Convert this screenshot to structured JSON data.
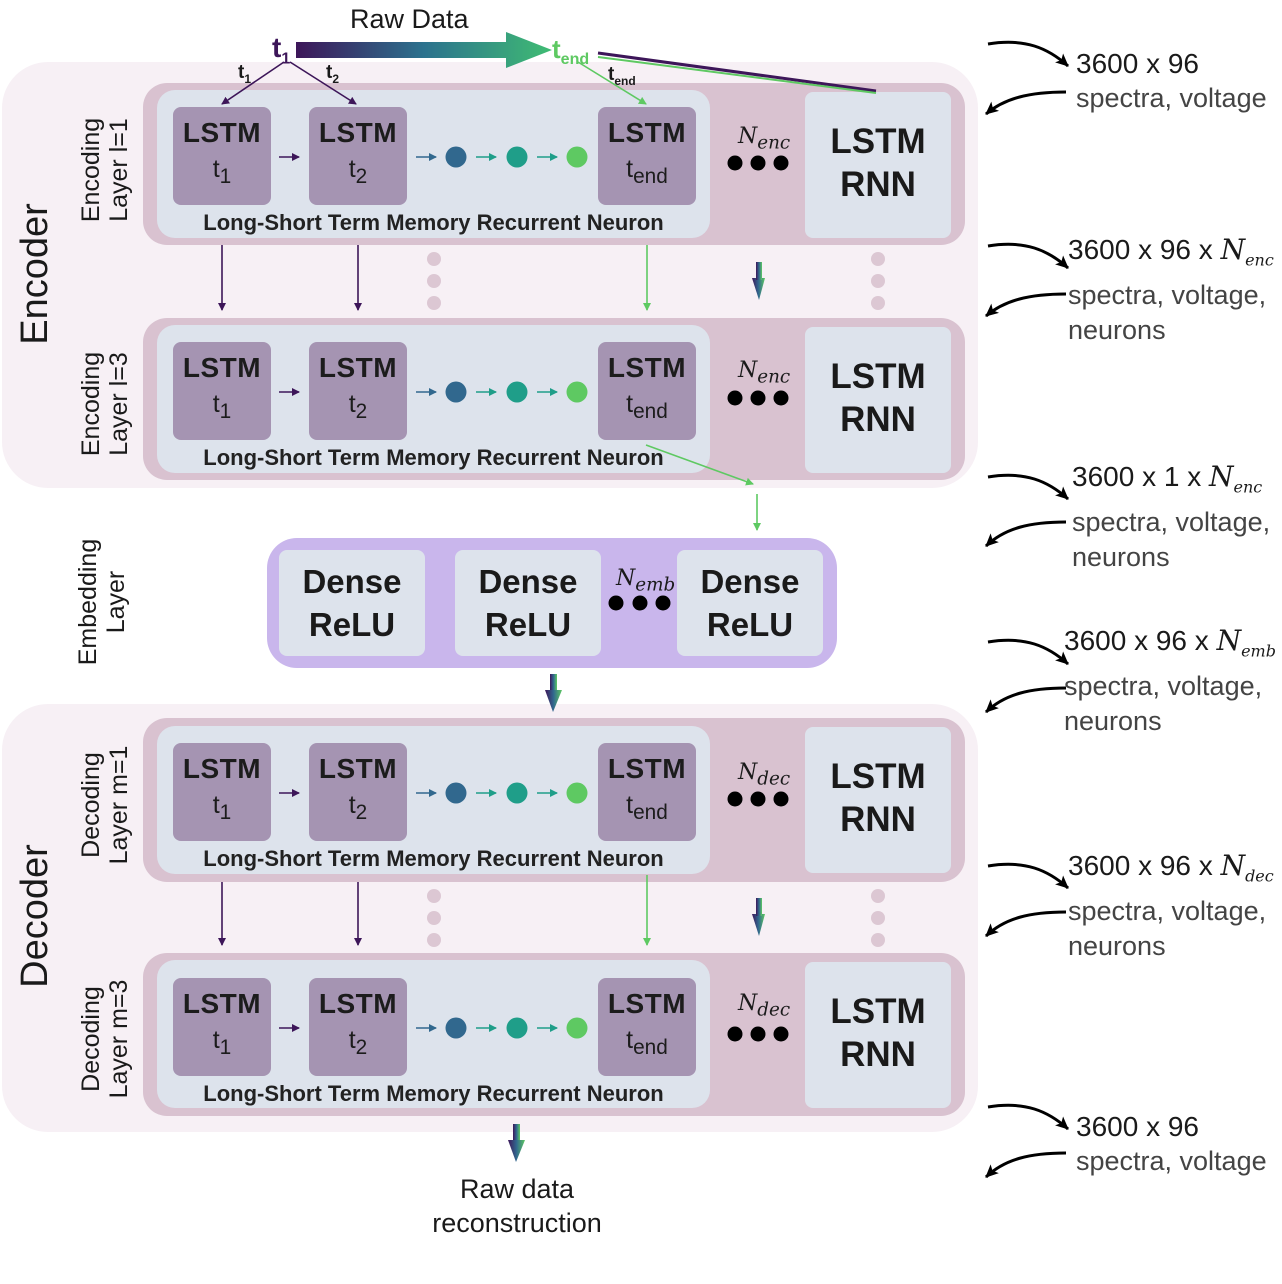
{
  "raw_data_label": "Raw Data",
  "t1_label": "t",
  "t1_sub": "1",
  "tend_label": "t",
  "tend_sub": "end",
  "arrow_t1": "t",
  "arrow_t1_sub": "1",
  "arrow_t2": "t",
  "arrow_t2_sub": "2",
  "arrow_tend": "t",
  "arrow_tend_sub": "end",
  "encoder_title": "Encoder",
  "decoder_title": "Decoder",
  "layers": [
    {
      "side1": "Encoding",
      "side2": "Layer l=1",
      "n_label": "N",
      "n_sub": "enc"
    },
    {
      "side1": "Encoding",
      "side2": "Layer l=3",
      "n_label": "N",
      "n_sub": "enc"
    },
    {
      "side1": "Decoding",
      "side2": "Layer m=1",
      "n_label": "N",
      "n_sub": "dec"
    },
    {
      "side1": "Decoding",
      "side2": "Layer m=3",
      "n_label": "N",
      "n_sub": "dec"
    }
  ],
  "cell": {
    "title": "LSTM",
    "t": "t",
    "sub1": "1",
    "sub2": "2",
    "subend": "end"
  },
  "rnn": {
    "line1": "LSTM",
    "line2": "RNN"
  },
  "caption": "Long-Short Term Memory Recurrent Neuron",
  "embedding": {
    "side1": "Embedding",
    "side2": "Layer",
    "dense_line1": "Dense",
    "dense_line2": "ReLU",
    "n_label": "N",
    "n_sub": "emb"
  },
  "output_label_1": "Raw data",
  "output_label_2": "reconstruction",
  "side_annotations": [
    {
      "dims": "3600 x 96",
      "n": "",
      "n_sub": "",
      "line2": "spectra, voltage",
      "line3": ""
    },
    {
      "dims": "3600 x  96 x ",
      "n": "N",
      "n_sub": "enc",
      "line2": "spectra, voltage,",
      "line3": " neurons"
    },
    {
      "dims": "3600 x  1 x ",
      "n": "N",
      "n_sub": "enc",
      "line2": "spectra, voltage,",
      "line3": "neurons"
    },
    {
      "dims": "3600 x  96 x ",
      "n": "N",
      "n_sub": "emb",
      "line2": "spectra, voltage,",
      "line3": "neurons"
    },
    {
      "dims": "3600 x  96 x ",
      "n": "N",
      "n_sub": "dec",
      "line2": "spectra, voltage,",
      "line3": "neurons"
    },
    {
      "dims": "3600 x  96",
      "n": "",
      "n_sub": "",
      "line2": "spectra, voltage",
      "line3": ""
    }
  ],
  "colors": {
    "purple_dark": "#3d1659",
    "teal": "#1f9e89",
    "green": "#5ec962",
    "blue_dark": "#31688e",
    "layer_bg": "#d9c2d0",
    "inner_bg": "#dde3ec",
    "cell_bg": "#a594b2",
    "embed_bg": "#c9b6ec",
    "section_bg": "#f7f0f5"
  }
}
